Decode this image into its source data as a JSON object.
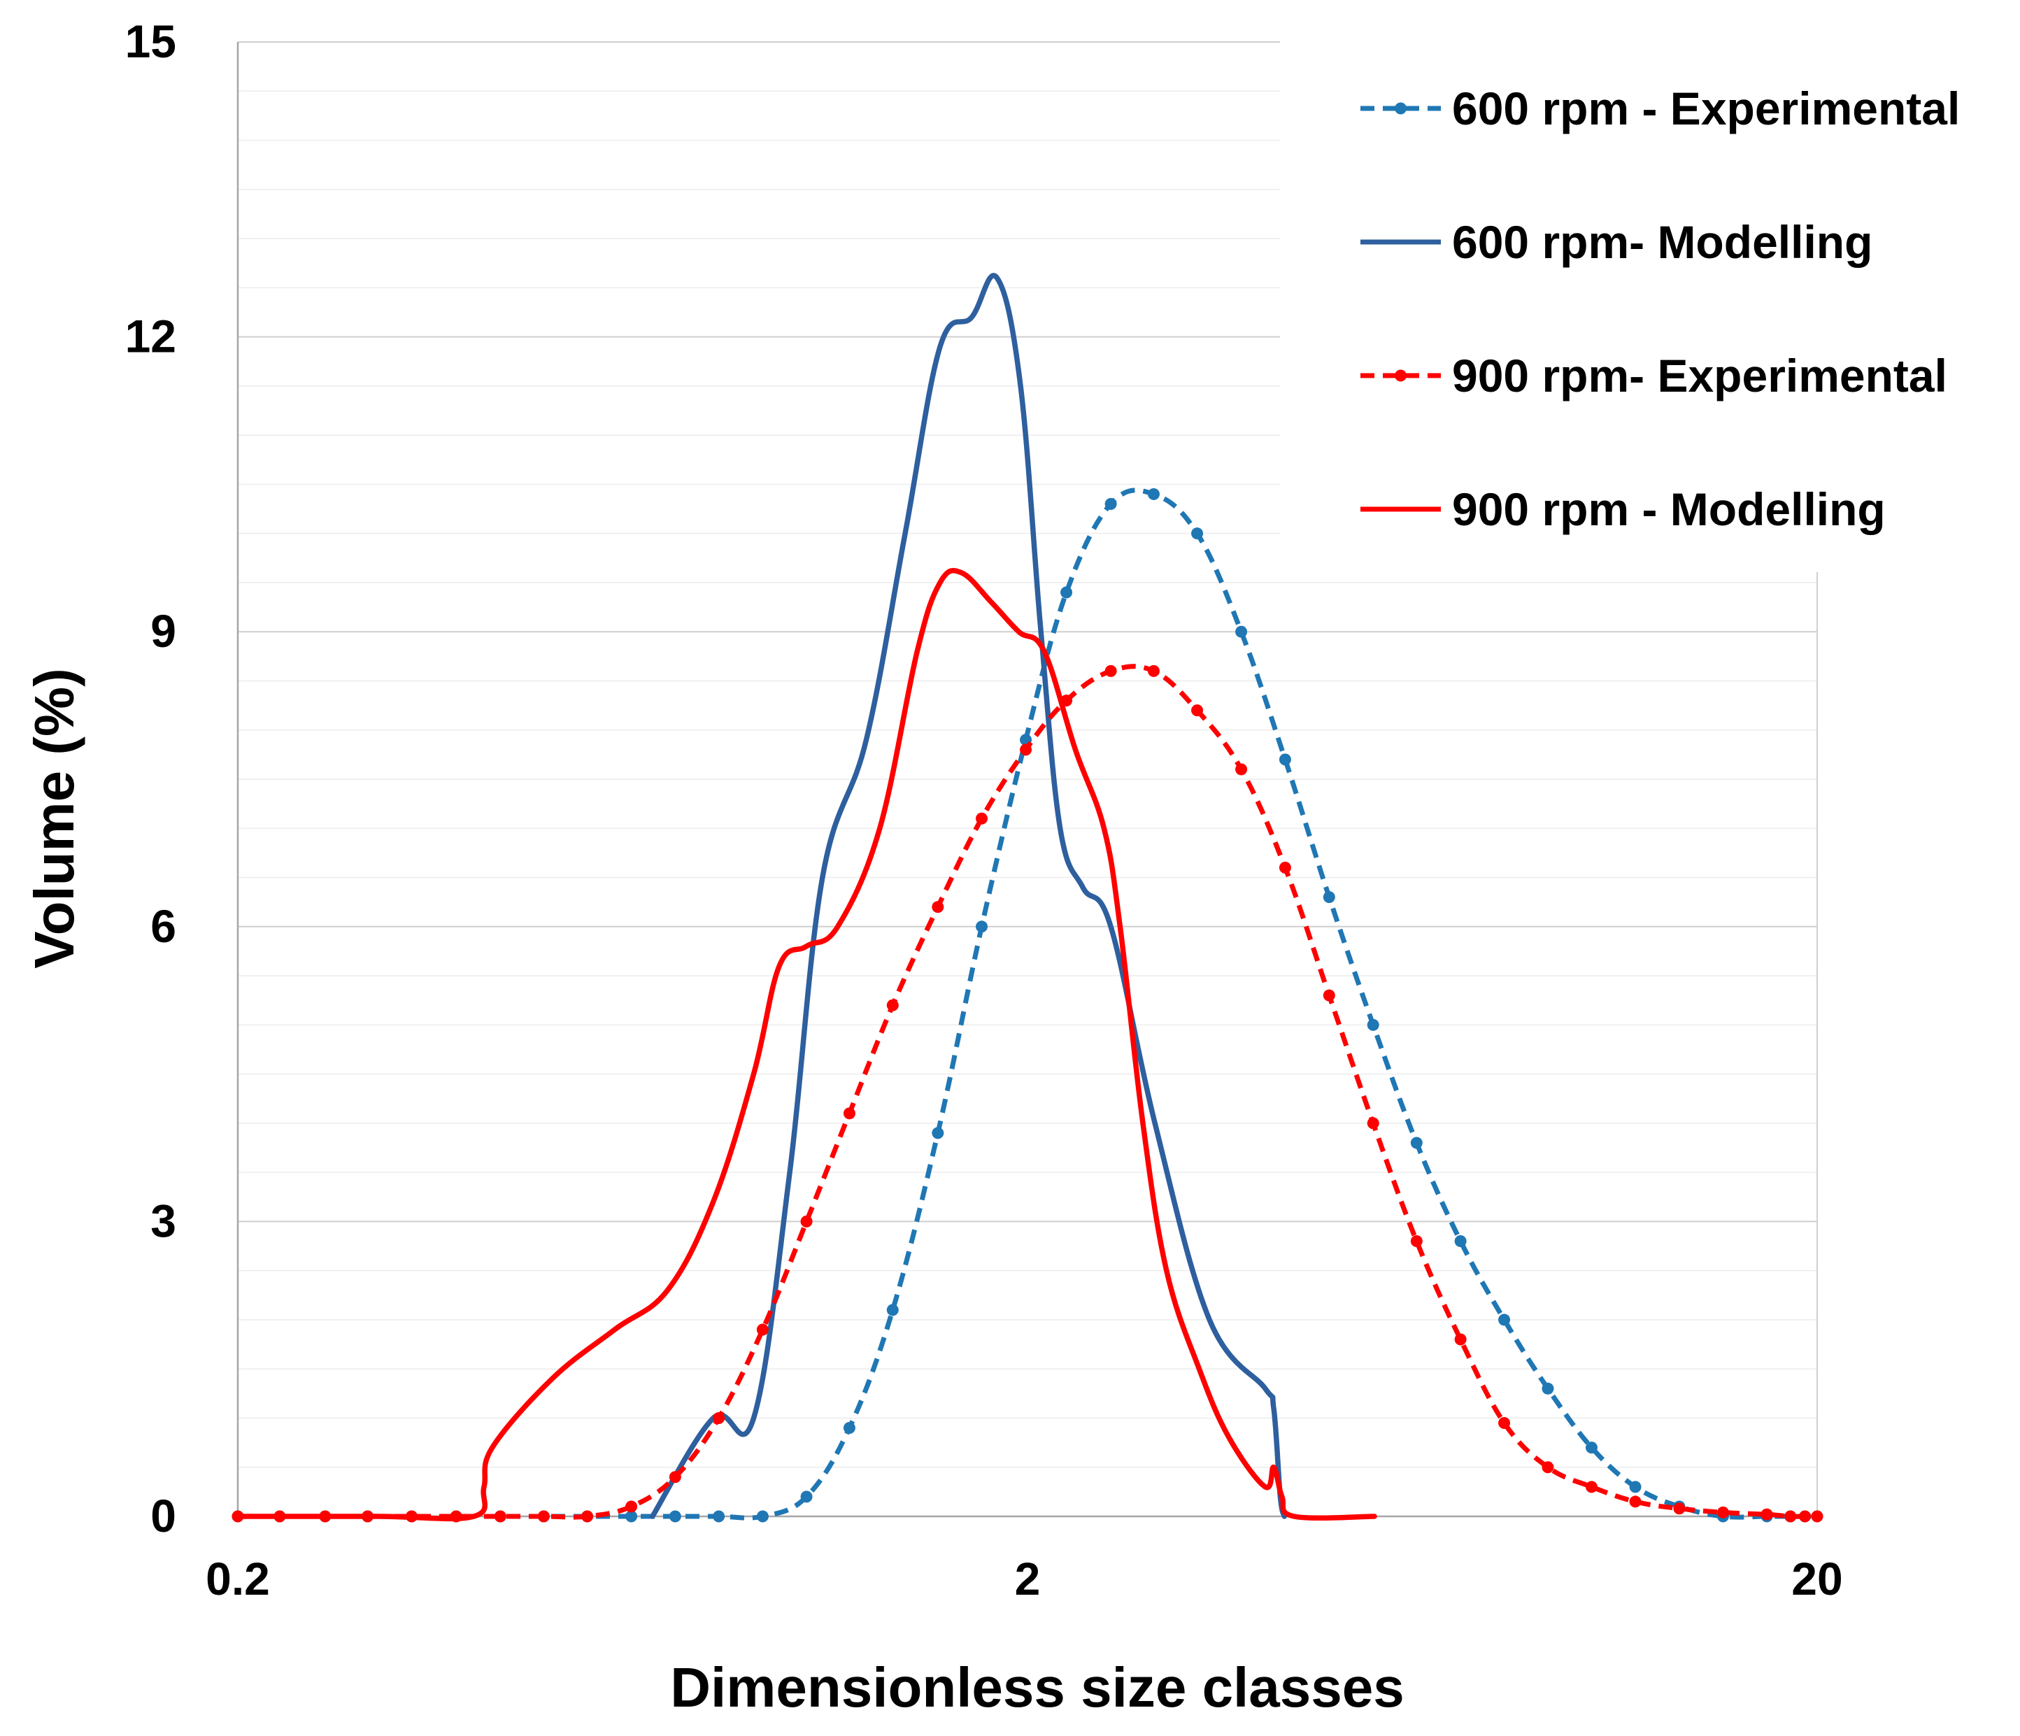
{
  "chart_data": {
    "type": "line",
    "title": "",
    "xlabel": "Dimensionless size classes",
    "ylabel": "Volume (%)",
    "x_scale": "log",
    "xlim": [
      0.2,
      20
    ],
    "ylim": [
      0,
      15
    ],
    "x_ticks": [
      0.2,
      2,
      20
    ],
    "x_tick_labels": [
      "0.2",
      "2",
      "20"
    ],
    "y_ticks": [
      0,
      3,
      6,
      9,
      12,
      15
    ],
    "y_tick_labels": [
      "0",
      "3",
      "6",
      "9",
      "12",
      "15"
    ],
    "grid": "horizontal",
    "legend_position": "top-right",
    "series": [
      {
        "name": "600 rpm - Experimental",
        "color": "#1f77b4",
        "style": "dashed-markers",
        "points": [
          [
            0.2,
            0
          ],
          [
            0.226,
            0
          ],
          [
            0.258,
            0
          ],
          [
            0.292,
            0
          ],
          [
            0.332,
            0
          ],
          [
            0.378,
            0
          ],
          [
            0.43,
            0
          ],
          [
            0.488,
            0
          ],
          [
            0.554,
            0
          ],
          [
            0.63,
            0
          ],
          [
            0.716,
            0
          ],
          [
            0.813,
            0
          ],
          [
            0.924,
            0
          ],
          [
            1.05,
            0.2
          ],
          [
            1.19,
            0.9
          ],
          [
            1.35,
            2.1
          ],
          [
            1.54,
            3.9
          ],
          [
            1.75,
            6.0
          ],
          [
            1.99,
            7.9
          ],
          [
            2.24,
            9.4
          ],
          [
            2.55,
            10.3
          ],
          [
            2.89,
            10.4
          ],
          [
            3.28,
            10.0
          ],
          [
            3.73,
            9.0
          ],
          [
            4.24,
            7.7
          ],
          [
            4.82,
            6.3
          ],
          [
            5.48,
            5.0
          ],
          [
            6.22,
            3.8
          ],
          [
            7.07,
            2.8
          ],
          [
            8.03,
            2.0
          ],
          [
            9.12,
            1.3
          ],
          [
            10.36,
            0.7
          ],
          [
            11.77,
            0.3
          ],
          [
            13.38,
            0.1
          ],
          [
            15.2,
            0
          ],
          [
            17.27,
            0
          ],
          [
            18.5,
            0
          ],
          [
            19.3,
            0
          ],
          [
            20,
            0
          ]
        ]
      },
      {
        "name": "600 rpm- Modelling",
        "color": "#2e5f9e",
        "style": "solid",
        "points": [
          [
            0.67,
            0
          ],
          [
            0.8,
            1.0
          ],
          [
            0.9,
            1.0
          ],
          [
            1.0,
            3.5
          ],
          [
            1.1,
            6.5
          ],
          [
            1.25,
            7.9
          ],
          [
            1.4,
            10.0
          ],
          [
            1.55,
            11.9
          ],
          [
            1.7,
            12.2
          ],
          [
            1.83,
            12.6
          ],
          [
            1.96,
            11.5
          ],
          [
            2.08,
            9.0
          ],
          [
            2.2,
            7.0
          ],
          [
            2.35,
            6.4
          ],
          [
            2.55,
            6.0
          ],
          [
            2.9,
            4.0
          ],
          [
            3.4,
            2.0
          ],
          [
            4.0,
            1.3
          ],
          [
            4.1,
            1.1
          ],
          [
            4.18,
            0.2
          ],
          [
            4.23,
            0
          ]
        ]
      },
      {
        "name": "900 rpm- Experimental",
        "color": "#ff0000",
        "style": "dashed-markers",
        "points": [
          [
            0.2,
            0
          ],
          [
            0.226,
            0
          ],
          [
            0.258,
            0
          ],
          [
            0.292,
            0
          ],
          [
            0.332,
            0
          ],
          [
            0.378,
            0
          ],
          [
            0.43,
            0
          ],
          [
            0.488,
            0
          ],
          [
            0.554,
            0
          ],
          [
            0.63,
            0.1
          ],
          [
            0.716,
            0.4
          ],
          [
            0.813,
            1.0
          ],
          [
            0.924,
            1.9
          ],
          [
            1.05,
            3.0
          ],
          [
            1.19,
            4.1
          ],
          [
            1.35,
            5.2
          ],
          [
            1.54,
            6.2
          ],
          [
            1.75,
            7.1
          ],
          [
            1.99,
            7.8
          ],
          [
            2.24,
            8.3
          ],
          [
            2.55,
            8.6
          ],
          [
            2.89,
            8.6
          ],
          [
            3.28,
            8.2
          ],
          [
            3.73,
            7.6
          ],
          [
            4.24,
            6.6
          ],
          [
            4.82,
            5.3
          ],
          [
            5.48,
            4.0
          ],
          [
            6.22,
            2.8
          ],
          [
            7.07,
            1.8
          ],
          [
            8.03,
            0.95
          ],
          [
            9.12,
            0.5
          ],
          [
            10.36,
            0.3
          ],
          [
            11.77,
            0.15
          ],
          [
            13.38,
            0.08
          ],
          [
            15.2,
            0.04
          ],
          [
            17.27,
            0.02
          ],
          [
            18.5,
            0
          ],
          [
            19.3,
            0
          ],
          [
            20,
            0
          ]
        ]
      },
      {
        "name": "900 rpm - Modelling",
        "color": "#ff0000",
        "style": "solid",
        "points": [
          [
            0.2,
            0
          ],
          [
            0.3,
            0
          ],
          [
            0.398,
            0
          ],
          [
            0.41,
            0.3
          ],
          [
            0.42,
            0.7
          ],
          [
            0.5,
            1.4
          ],
          [
            0.6,
            1.9
          ],
          [
            0.7,
            2.3
          ],
          [
            0.8,
            3.2
          ],
          [
            0.9,
            4.5
          ],
          [
            0.97,
            5.6
          ],
          [
            1.05,
            5.8
          ],
          [
            1.15,
            6.0
          ],
          [
            1.3,
            7.0
          ],
          [
            1.45,
            8.8
          ],
          [
            1.55,
            9.5
          ],
          [
            1.65,
            9.6
          ],
          [
            1.8,
            9.3
          ],
          [
            1.95,
            9.0
          ],
          [
            2.1,
            8.8
          ],
          [
            2.3,
            7.8
          ],
          [
            2.5,
            7.0
          ],
          [
            2.62,
            6.0
          ],
          [
            2.8,
            4.0
          ],
          [
            3.0,
            2.5
          ],
          [
            3.3,
            1.5
          ],
          [
            3.6,
            0.8
          ],
          [
            4.0,
            0.3
          ],
          [
            4.1,
            0.5
          ],
          [
            4.2,
            0.2
          ],
          [
            4.35,
            0
          ],
          [
            5.5,
            0
          ]
        ]
      }
    ]
  }
}
